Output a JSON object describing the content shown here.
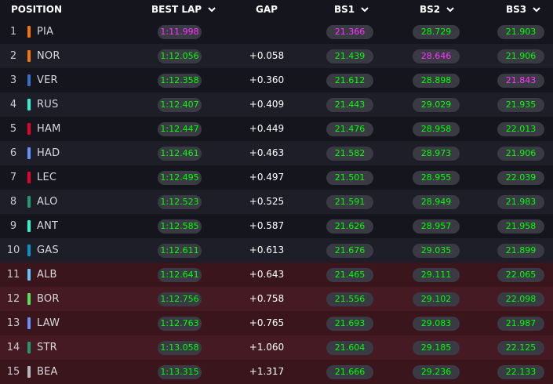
{
  "header": {
    "position": "POSITION",
    "best_lap": "BEST LAP",
    "gap": "GAP",
    "bs1": "BS1",
    "bs2": "BS2",
    "bs3": "BS3"
  },
  "colors": {
    "row_dark": "#15151e",
    "row_alt": "#1e1e28",
    "row_elim_dark": "#3a161c",
    "row_elim_alt": "#451a22",
    "green": "#00ff00",
    "purple": "#ff33ff"
  },
  "rows": [
    {
      "pos": "1",
      "code": "PIA",
      "team": "#f47600",
      "best": "1:11.998",
      "best_purple": true,
      "gap": "",
      "bs1": "21.366",
      "bs1_purple": true,
      "bs2": "28.729",
      "bs2_purple": false,
      "bs3": "21.903",
      "bs3_purple": false,
      "elim": false
    },
    {
      "pos": "2",
      "code": "NOR",
      "team": "#f47600",
      "best": "1:12.056",
      "best_purple": false,
      "gap": "+0.058",
      "bs1": "21.439",
      "bs1_purple": false,
      "bs2": "28.646",
      "bs2_purple": true,
      "bs3": "21.906",
      "bs3_purple": false,
      "elim": false
    },
    {
      "pos": "3",
      "code": "VER",
      "team": "#3671c6",
      "best": "1:12.358",
      "best_purple": false,
      "gap": "+0.360",
      "bs1": "21.612",
      "bs1_purple": false,
      "bs2": "28.898",
      "bs2_purple": false,
      "bs3": "21.843",
      "bs3_purple": true,
      "elim": false
    },
    {
      "pos": "4",
      "code": "RUS",
      "team": "#27f4d2",
      "best": "1:12.407",
      "best_purple": false,
      "gap": "+0.409",
      "bs1": "21.443",
      "bs1_purple": false,
      "bs2": "29.029",
      "bs2_purple": false,
      "bs3": "21.935",
      "bs3_purple": false,
      "elim": false
    },
    {
      "pos": "5",
      "code": "HAM",
      "team": "#e8002d",
      "best": "1:12.447",
      "best_purple": false,
      "gap": "+0.449",
      "bs1": "21.476",
      "bs1_purple": false,
      "bs2": "28.958",
      "bs2_purple": false,
      "bs3": "22.013",
      "bs3_purple": false,
      "elim": false
    },
    {
      "pos": "6",
      "code": "HAD",
      "team": "#6692ff",
      "best": "1:12.461",
      "best_purple": false,
      "gap": "+0.463",
      "bs1": "21.582",
      "bs1_purple": false,
      "bs2": "28.973",
      "bs2_purple": false,
      "bs3": "21.906",
      "bs3_purple": false,
      "elim": false
    },
    {
      "pos": "7",
      "code": "LEC",
      "team": "#e8002d",
      "best": "1:12.495",
      "best_purple": false,
      "gap": "+0.497",
      "bs1": "21.501",
      "bs1_purple": false,
      "bs2": "28.955",
      "bs2_purple": false,
      "bs3": "22.039",
      "bs3_purple": false,
      "elim": false
    },
    {
      "pos": "8",
      "code": "ALO",
      "team": "#229971",
      "best": "1:12.523",
      "best_purple": false,
      "gap": "+0.525",
      "bs1": "21.591",
      "bs1_purple": false,
      "bs2": "28.949",
      "bs2_purple": false,
      "bs3": "21.983",
      "bs3_purple": false,
      "elim": false
    },
    {
      "pos": "9",
      "code": "ANT",
      "team": "#27f4d2",
      "best": "1:12.585",
      "best_purple": false,
      "gap": "+0.587",
      "bs1": "21.626",
      "bs1_purple": false,
      "bs2": "28.957",
      "bs2_purple": false,
      "bs3": "21.958",
      "bs3_purple": false,
      "elim": false
    },
    {
      "pos": "10",
      "code": "GAS",
      "team": "#0093cc",
      "best": "1:12.611",
      "best_purple": false,
      "gap": "+0.613",
      "bs1": "21.676",
      "bs1_purple": false,
      "bs2": "29.035",
      "bs2_purple": false,
      "bs3": "21.899",
      "bs3_purple": false,
      "elim": false
    },
    {
      "pos": "11",
      "code": "ALB",
      "team": "#64c4ff",
      "best": "1:12.641",
      "best_purple": false,
      "gap": "+0.643",
      "bs1": "21.465",
      "bs1_purple": false,
      "bs2": "29.111",
      "bs2_purple": false,
      "bs3": "22.065",
      "bs3_purple": false,
      "elim": true
    },
    {
      "pos": "12",
      "code": "BOR",
      "team": "#52e252",
      "best": "1:12.756",
      "best_purple": false,
      "gap": "+0.758",
      "bs1": "21.556",
      "bs1_purple": false,
      "bs2": "29.102",
      "bs2_purple": false,
      "bs3": "22.098",
      "bs3_purple": false,
      "elim": true
    },
    {
      "pos": "13",
      "code": "LAW",
      "team": "#6692ff",
      "best": "1:12.763",
      "best_purple": false,
      "gap": "+0.765",
      "bs1": "21.693",
      "bs1_purple": false,
      "bs2": "29.083",
      "bs2_purple": false,
      "bs3": "21.987",
      "bs3_purple": false,
      "elim": true
    },
    {
      "pos": "14",
      "code": "STR",
      "team": "#229971",
      "best": "1:13.058",
      "best_purple": false,
      "gap": "+1.060",
      "bs1": "21.604",
      "bs1_purple": false,
      "bs2": "29.185",
      "bs2_purple": false,
      "bs3": "22.125",
      "bs3_purple": false,
      "elim": true
    },
    {
      "pos": "15",
      "code": "BEA",
      "team": "#b6babd",
      "best": "1:13.315",
      "best_purple": false,
      "gap": "+1.317",
      "bs1": "21.666",
      "bs1_purple": false,
      "bs2": "29.236",
      "bs2_purple": false,
      "bs3": "22.133",
      "bs3_purple": false,
      "elim": true
    }
  ]
}
